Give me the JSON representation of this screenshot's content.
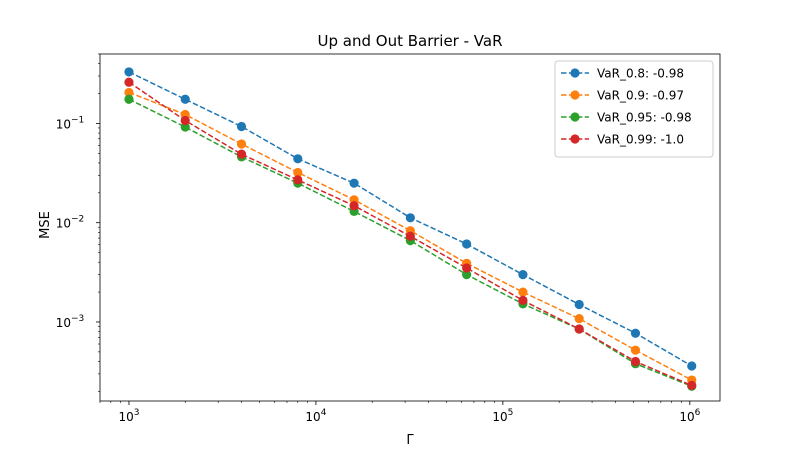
{
  "chart_data": {
    "type": "line",
    "title": "Up and Out Barrier - VaR",
    "xlabel": "Γ",
    "ylabel": "MSE",
    "xscale": "log",
    "yscale": "log",
    "xlim": [
      700,
      1450000
    ],
    "ylim": [
      0.00016,
      0.5
    ],
    "x_ticks": [
      {
        "value": 1000,
        "base": "10",
        "exp": "3"
      },
      {
        "value": 10000,
        "base": "10",
        "exp": "4"
      },
      {
        "value": 100000,
        "base": "10",
        "exp": "5"
      },
      {
        "value": 1000000,
        "base": "10",
        "exp": "6"
      }
    ],
    "y_ticks": [
      {
        "value": 0.001,
        "base": "10",
        "exp": "−3"
      },
      {
        "value": 0.01,
        "base": "10",
        "exp": "−2"
      },
      {
        "value": 0.1,
        "base": "10",
        "exp": "−1"
      }
    ],
    "grid": false,
    "legend_position": "top-right",
    "x": [
      1000,
      2000,
      4000,
      8000,
      16000,
      32000,
      64000,
      128000,
      256000,
      512000,
      1024000
    ],
    "series": [
      {
        "name": "VaR_0.8: -0.98",
        "color": "#1f77b4",
        "values": [
          0.33,
          0.175,
          0.093,
          0.044,
          0.025,
          0.0112,
          0.0061,
          0.003,
          0.0015,
          0.00077,
          0.00036
        ]
      },
      {
        "name": "VaR_0.9: -0.97",
        "color": "#ff7f0e",
        "values": [
          0.205,
          0.123,
          0.062,
          0.032,
          0.017,
          0.0083,
          0.0039,
          0.002,
          0.00108,
          0.00052,
          0.00026
        ]
      },
      {
        "name": "VaR_0.95: -0.98",
        "color": "#2ca02c",
        "values": [
          0.175,
          0.092,
          0.046,
          0.025,
          0.013,
          0.0066,
          0.003,
          0.00152,
          0.00085,
          0.00038,
          0.000225
        ]
      },
      {
        "name": "VaR_0.99: -1.0",
        "color": "#d62728",
        "values": [
          0.26,
          0.107,
          0.049,
          0.027,
          0.0148,
          0.0073,
          0.0035,
          0.00165,
          0.00085,
          0.0004,
          0.00023
        ]
      }
    ]
  }
}
